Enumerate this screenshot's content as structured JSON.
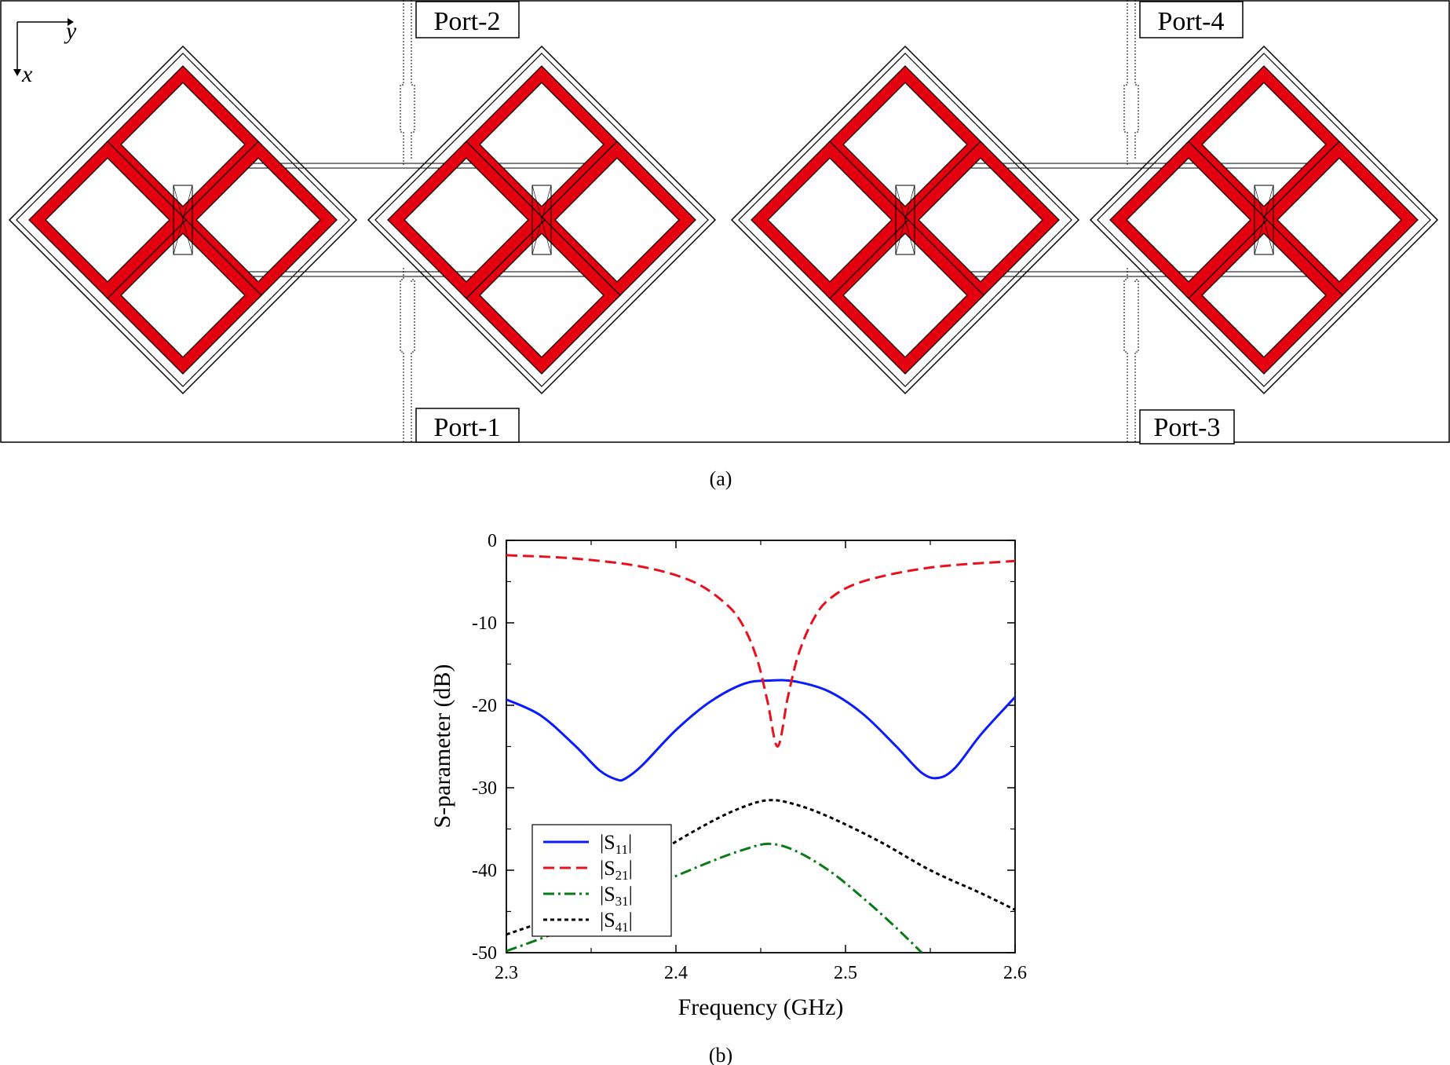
{
  "layout_panel": {
    "caption": "(a)",
    "axes_indicator": {
      "horizontal": "y",
      "vertical": "x"
    },
    "ports": [
      {
        "id": "port-2",
        "label": "Port-2"
      },
      {
        "id": "port-1",
        "label": "Port-1"
      },
      {
        "id": "port-4",
        "label": "Port-4"
      },
      {
        "id": "port-3",
        "label": "Port-3"
      }
    ],
    "colors": {
      "ring": "#e3000f",
      "outline": "#000000",
      "background": "#ffffff"
    }
  },
  "plot_panel": {
    "caption": "(b)",
    "chart_data": {
      "type": "line",
      "title": "",
      "xlabel": "Frequency (GHz)",
      "ylabel": "S-parameter (dB)",
      "xlim": [
        2.3,
        2.6
      ],
      "ylim": [
        -50,
        0
      ],
      "xticks": [
        2.3,
        2.4,
        2.5,
        2.6
      ],
      "xtick_labels": [
        "2.3",
        "2.4",
        "2.5",
        "2.6"
      ],
      "yticks": [
        0,
        -10,
        -20,
        -30,
        -40,
        -50
      ],
      "ytick_labels": [
        "0",
        "-10",
        "-20",
        "-30",
        "-40",
        "-50"
      ],
      "grid": false,
      "legend_position": "bottom-left",
      "series": [
        {
          "name": "|S11|",
          "label_main": "|S",
          "label_sub": "11",
          "label_end": "|",
          "color": "#0a1cff",
          "dash": "solid",
          "x": [
            2.3,
            2.32,
            2.34,
            2.355,
            2.365,
            2.37,
            2.38,
            2.4,
            2.42,
            2.44,
            2.455,
            2.47,
            2.49,
            2.51,
            2.53,
            2.545,
            2.555,
            2.565,
            2.58,
            2.6
          ],
          "y": [
            -19.3,
            -21.2,
            -24.8,
            -27.9,
            -29.0,
            -28.9,
            -27.3,
            -23.0,
            -19.6,
            -17.4,
            -17.0,
            -17.1,
            -18.3,
            -21.0,
            -25.0,
            -28.2,
            -28.8,
            -27.5,
            -23.5,
            -19.0
          ]
        },
        {
          "name": "|S21|",
          "label_main": "|S",
          "label_sub": "21",
          "label_end": "|",
          "color": "#e8101c",
          "dash": "dashed",
          "x": [
            2.3,
            2.34,
            2.38,
            2.41,
            2.43,
            2.44,
            2.448,
            2.454,
            2.46,
            2.466,
            2.472,
            2.48,
            2.49,
            2.51,
            2.55,
            2.6
          ],
          "y": [
            -1.8,
            -2.2,
            -3.2,
            -5.0,
            -7.8,
            -10.5,
            -14.5,
            -19.5,
            -25.0,
            -19.0,
            -14.0,
            -10.0,
            -7.2,
            -5.0,
            -3.3,
            -2.5
          ]
        },
        {
          "name": "|S31|",
          "label_main": "|S",
          "label_sub": "31",
          "label_end": "|",
          "color": "#0a7a18",
          "dash": "dashdot",
          "x": [
            2.3,
            2.33,
            2.36,
            2.39,
            2.42,
            2.44,
            2.455,
            2.47,
            2.49,
            2.51,
            2.53,
            2.545
          ],
          "y": [
            -49.8,
            -47.5,
            -44.5,
            -41.6,
            -39.0,
            -37.5,
            -36.8,
            -37.6,
            -40.0,
            -43.3,
            -47.0,
            -50.0
          ]
        },
        {
          "name": "|S41|",
          "label_main": "|S",
          "label_sub": "41",
          "label_end": "|",
          "color": "#000000",
          "dash": "dotted",
          "x": [
            2.3,
            2.33,
            2.36,
            2.39,
            2.42,
            2.44,
            2.455,
            2.47,
            2.49,
            2.52,
            2.55,
            2.58,
            2.6
          ],
          "y": [
            -47.8,
            -45.5,
            -42.0,
            -37.8,
            -34.2,
            -32.3,
            -31.5,
            -32.0,
            -33.5,
            -36.5,
            -40.0,
            -42.8,
            -44.8
          ]
        }
      ]
    }
  }
}
